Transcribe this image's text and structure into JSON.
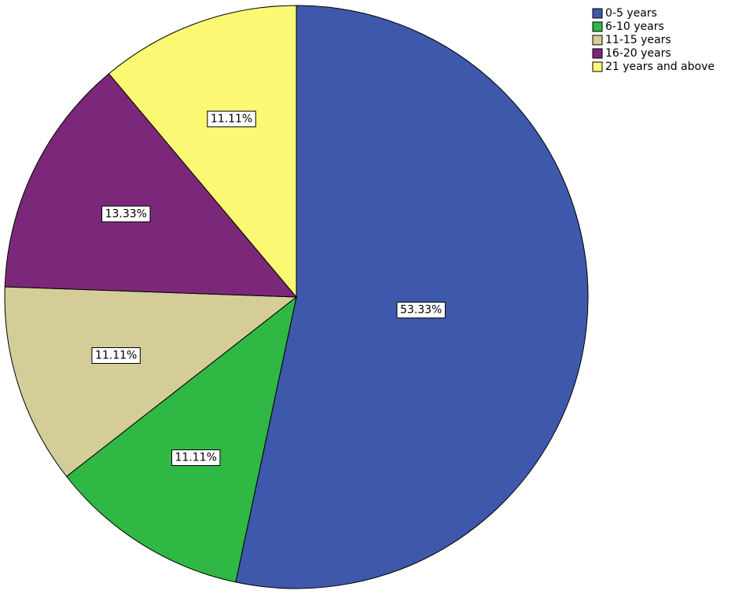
{
  "chart_data": {
    "type": "pie",
    "categories": [
      "0-5 years",
      "6-10 years",
      "11-15 years",
      "16-20 years",
      "21 years and above"
    ],
    "values": [
      53.33,
      11.11,
      11.11,
      13.33,
      11.11
    ],
    "value_labels": [
      "53.33%",
      "11.11%",
      "11.11%",
      "13.33%",
      "11.11%"
    ],
    "colors": [
      "#3e58ac",
      "#2fb844",
      "#d5cd98",
      "#7b287b",
      "#fbf873"
    ],
    "start_angle_deg": 0,
    "direction": "clockwise",
    "legend_position": "top-right"
  }
}
